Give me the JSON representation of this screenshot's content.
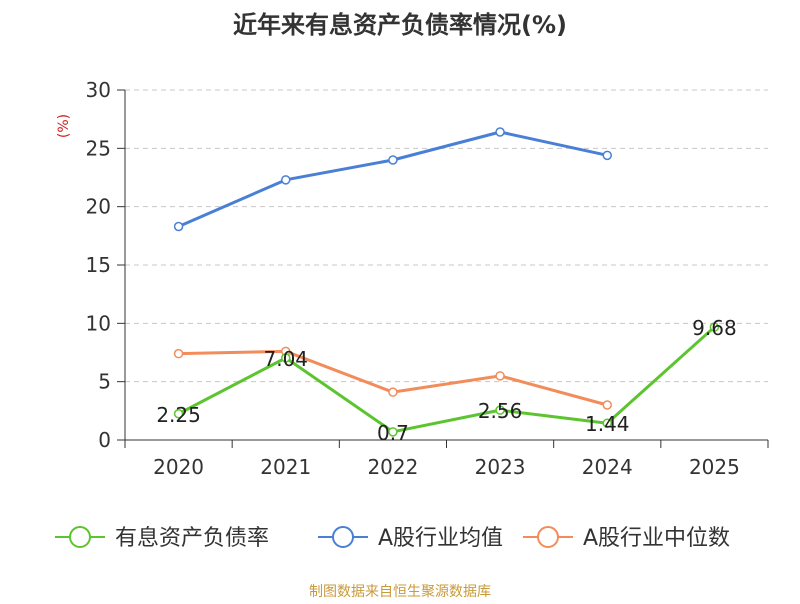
{
  "chart_data": {
    "type": "line",
    "title": "近年来有息资产负债率情况(%)",
    "ylabel": "(%)",
    "xlabel": "",
    "categories": [
      "2020",
      "2021",
      "2022",
      "2023",
      "2024",
      "2025"
    ],
    "ylim": [
      0,
      30
    ],
    "yticks": [
      0,
      5,
      10,
      15,
      20,
      25,
      30
    ],
    "grid": true,
    "legend_position": "bottom",
    "series": [
      {
        "name": "有息资产负债率",
        "color": "#5cc42e",
        "values": [
          2.25,
          7.04,
          0.7,
          2.56,
          1.44,
          9.68
        ],
        "labels": [
          "2.25",
          "7.04",
          "0.7",
          "2.56",
          "1.44",
          "9.68"
        ]
      },
      {
        "name": "A股行业均值",
        "color": "#4a7fd6",
        "values": [
          18.3,
          22.3,
          24.0,
          26.4,
          24.4,
          null
        ]
      },
      {
        "name": "A股行业中位数",
        "color": "#f28c5a",
        "values": [
          7.4,
          7.6,
          4.1,
          5.5,
          3.0,
          null
        ]
      }
    ],
    "source": "制图数据来自恒生聚源数据库"
  }
}
